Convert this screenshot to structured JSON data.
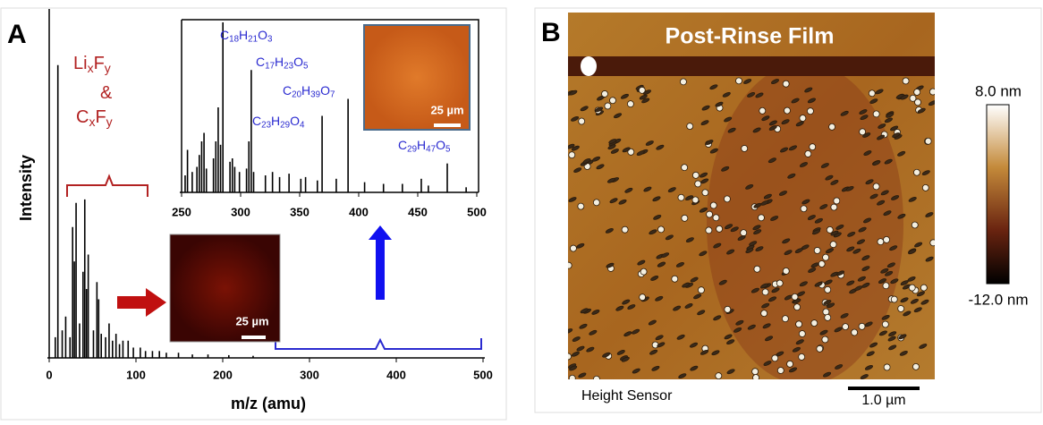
{
  "panel_a": {
    "label": "A"
  },
  "panel_b": {
    "label": "B",
    "title": "Post-Rinse Film",
    "caption": "Height Sensor",
    "scale_bar": "1.0 µm",
    "colorbar": {
      "max_label": "8.0 nm",
      "min_label": "-12.0 nm"
    }
  },
  "micrographs": [
    {
      "scale_bar": "25 µm"
    },
    {
      "scale_bar": "25 µm"
    }
  ],
  "chart_data": [
    {
      "type": "stem",
      "xlabel": "m/z (amu)",
      "ylabel": "Intensity",
      "color": "#000000",
      "xlim": [
        0,
        500
      ],
      "xticks": [
        0,
        100,
        200,
        300,
        400,
        500
      ],
      "ylim": [
        0,
        100
      ],
      "x": [
        7,
        10,
        15,
        19,
        24,
        27,
        29,
        31,
        35,
        39,
        41,
        43,
        45,
        51,
        55,
        57,
        60,
        65,
        69,
        73,
        77,
        81,
        85,
        91,
        97,
        105,
        111,
        119,
        127,
        135,
        149,
        165,
        183,
        207,
        235
      ],
      "values": [
        6,
        85,
        8,
        12,
        6,
        38,
        28,
        45,
        10,
        25,
        46,
        20,
        30,
        8,
        22,
        17,
        7,
        6,
        10,
        5,
        7,
        4,
        5,
        5,
        3,
        3,
        2,
        2,
        2,
        1.5,
        1.5,
        1,
        1,
        0.8,
        0.6
      ],
      "annotations": [
        {
          "text": [
            "Li",
            "x",
            "F",
            "y"
          ]
        },
        {
          "text": [
            "&"
          ]
        },
        {
          "text": [
            "C",
            "x",
            "F",
            "y"
          ]
        }
      ]
    },
    {
      "type": "stem",
      "color": "#000000",
      "xlim": [
        250,
        500
      ],
      "xticks": [
        250,
        300,
        350,
        400,
        450,
        500
      ],
      "ylim": [
        0,
        100
      ],
      "x": [
        253,
        255,
        259,
        263,
        265,
        267,
        269,
        271,
        277,
        279,
        281,
        283,
        285,
        291,
        293,
        295,
        299,
        305,
        307,
        309,
        311,
        321,
        327,
        333,
        341,
        351,
        355,
        365,
        369,
        381,
        391,
        405,
        421,
        437,
        453,
        459,
        475,
        491
      ],
      "values": [
        10,
        25,
        12,
        15,
        22,
        30,
        35,
        14,
        20,
        30,
        50,
        28,
        100,
        18,
        20,
        15,
        12,
        14,
        30,
        72,
        12,
        10,
        12,
        9,
        11,
        8,
        9,
        7,
        45,
        8,
        55,
        6,
        5,
        5,
        8,
        4,
        17,
        3
      ],
      "annotations": [
        {
          "text": [
            "C",
            "18",
            "H",
            "21",
            "O",
            "3"
          ]
        },
        {
          "text": [
            "C",
            "17",
            "H",
            "23",
            "O",
            "5"
          ]
        },
        {
          "text": [
            "C",
            "20",
            "H",
            "39",
            "O",
            "7"
          ]
        },
        {
          "text": [
            "C",
            "23",
            "H",
            "29",
            "O",
            "4"
          ]
        },
        {
          "text": [
            "C",
            "29",
            "H",
            "47",
            "O",
            "5"
          ]
        }
      ]
    }
  ]
}
